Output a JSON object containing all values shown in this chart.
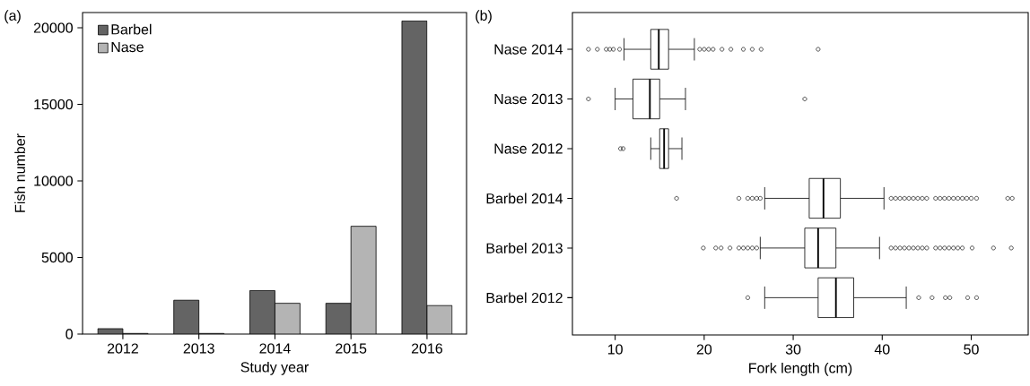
{
  "chart_data": [
    {
      "type": "bar",
      "annotations": [
        "(a)"
      ],
      "xlabel": "Study year",
      "ylabel": "Fish number",
      "categories": [
        "2012",
        "2013",
        "2014",
        "2015",
        "2016"
      ],
      "series": [
        {
          "name": "Barbel",
          "color": "#646464",
          "values": [
            350,
            2210,
            2840,
            2010,
            20450
          ]
        },
        {
          "name": "Nase",
          "color": "#b4b4b4",
          "values": [
            40,
            40,
            2010,
            7040,
            1860
          ]
        }
      ],
      "ylim": [
        0,
        21000
      ],
      "yticks": [
        0,
        5000,
        10000,
        15000,
        20000
      ],
      "legend": "top left"
    },
    {
      "type": "box",
      "annotations": [
        "(b)"
      ],
      "xlabel": "Fork length (cm)",
      "orientation": "horizontal",
      "categories": [
        "Nase 2014",
        "Nase 2013",
        "Nase 2012",
        "Barbel 2014",
        "Barbel 2013",
        "Barbel 2012"
      ],
      "boxes": [
        {
          "low": 11,
          "q1": 14,
          "median": 14.9,
          "q3": 16,
          "high": 18.9,
          "outliers": [
            7,
            8,
            9,
            9.4,
            9.8,
            10.5,
            19.5,
            20,
            20.5,
            21,
            22,
            23,
            24.4,
            25.4,
            26.4,
            32.8
          ]
        },
        {
          "low": 10,
          "q1": 12,
          "median": 13.9,
          "q3": 15,
          "high": 17.9,
          "outliers": [
            7,
            31.3
          ]
        },
        {
          "low": 14,
          "q1": 15,
          "median": 15.5,
          "q3": 16,
          "high": 17.5,
          "outliers": [
            10.6,
            10.9
          ]
        },
        {
          "low": 26.8,
          "q1": 31.8,
          "median": 33.4,
          "q3": 35.3,
          "high": 40.2,
          "outliers": [
            16.9,
            23.9,
            24.9,
            25.4,
            25.9,
            26.3,
            41,
            41.5,
            42,
            42.5,
            43,
            43.5,
            44,
            44.5,
            45,
            46,
            46.5,
            47,
            47.5,
            48,
            48.5,
            49,
            49.5,
            50,
            50.6,
            54.1,
            54.6
          ]
        },
        {
          "low": 26.3,
          "q1": 31.3,
          "median": 32.8,
          "q3": 34.8,
          "high": 39.7,
          "outliers": [
            19.9,
            21.3,
            21.9,
            22.9,
            23.9,
            24.4,
            24.9,
            25.4,
            25.9,
            41,
            41.5,
            42,
            42.5,
            43,
            43.5,
            44,
            44.5,
            45,
            46,
            46.5,
            47,
            47.5,
            48,
            48.5,
            49,
            50.1,
            52.5,
            54.5
          ]
        },
        {
          "low": 26.8,
          "q1": 32.8,
          "median": 34.8,
          "q3": 36.8,
          "high": 42.7,
          "outliers": [
            24.9,
            44.1,
            45.6,
            47.1,
            47.6,
            49.6,
            50.6
          ]
        }
      ],
      "xlim": [
        5.2,
        56.4
      ],
      "xticks": [
        10,
        20,
        30,
        40,
        50
      ]
    }
  ]
}
